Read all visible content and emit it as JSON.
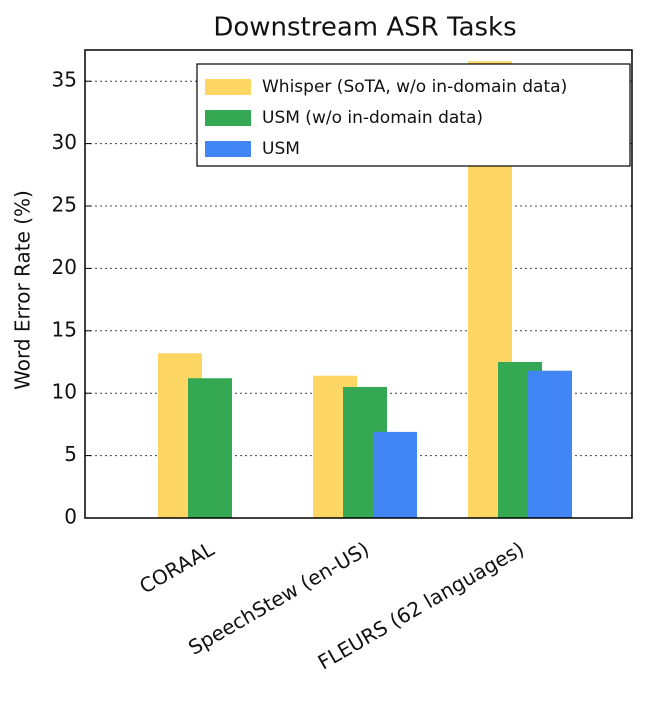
{
  "chart_data": {
    "type": "bar",
    "title": "Downstream ASR Tasks",
    "y_label": "Word Error Rate (%)",
    "categories": [
      "CORAAL",
      "SpeechStew (en-US)",
      "FLEURS (62 languages)"
    ],
    "series": [
      {
        "name": "Whisper (SoTA, w/o in-domain data)",
        "color": "#fdd663",
        "values": [
          13.2,
          11.4,
          36.6
        ]
      },
      {
        "name": "USM (w/o in-domain data)",
        "color": "#34a853",
        "values": [
          11.2,
          10.5,
          12.5
        ]
      },
      {
        "name": "USM",
        "color": "#4285f4",
        "values": [
          null,
          6.9,
          11.8
        ]
      }
    ],
    "ylim": [
      0,
      37.5
    ],
    "yticks": [
      0,
      5,
      10,
      15,
      20,
      25,
      30,
      35
    ],
    "grid": true
  }
}
